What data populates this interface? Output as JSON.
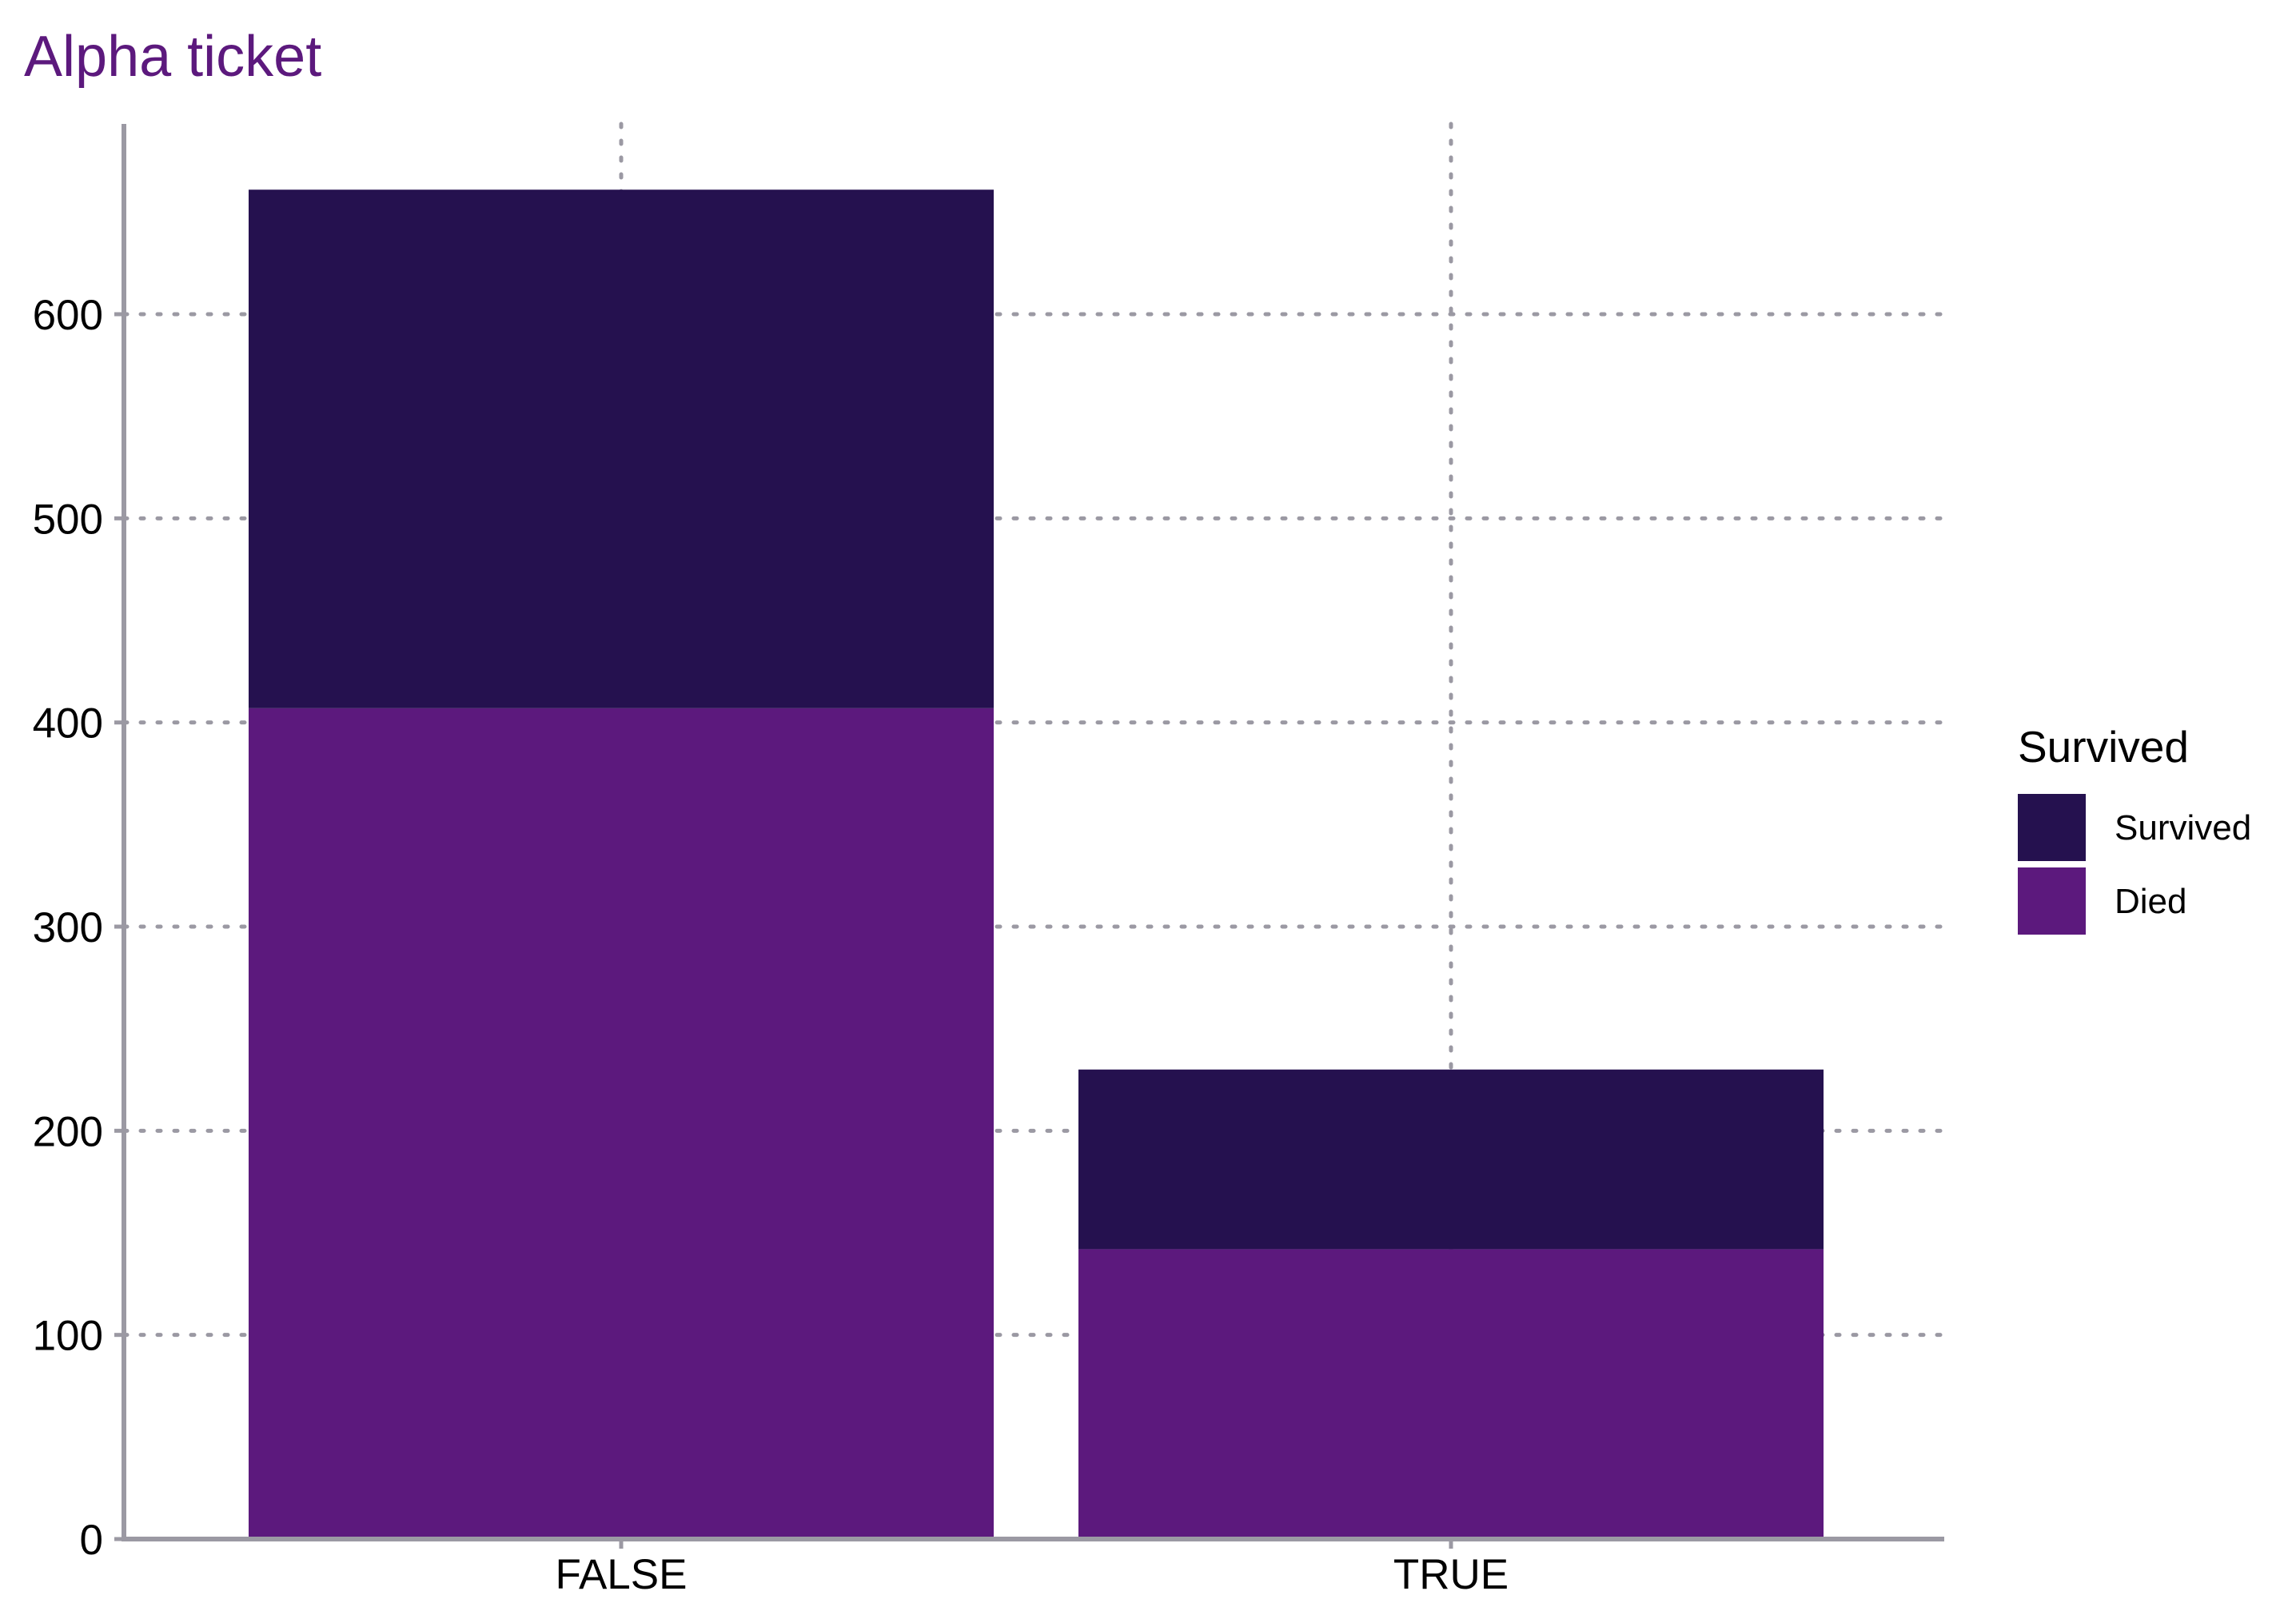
{
  "chart_data": {
    "type": "bar",
    "stacked": true,
    "title": "Alpha ticket",
    "xlabel": "",
    "ylabel": "",
    "categories": [
      "FALSE",
      "TRUE"
    ],
    "series": [
      {
        "name": "Died",
        "values": [
          407,
          142
        ],
        "color": "#5c197d"
      },
      {
        "name": "Survived",
        "values": [
          254,
          88
        ],
        "color": "#25114f"
      }
    ],
    "ylim": [
      0,
      690
    ],
    "y_ticks": [
      0,
      100,
      200,
      300,
      400,
      500,
      600
    ],
    "grid": true,
    "grid_style": "dotted",
    "legend": {
      "title": "Survived",
      "placement": "right",
      "order": [
        "Survived",
        "Died"
      ]
    },
    "colors": {
      "title": "#5c197d",
      "axis": "#9b99a3",
      "grid": "#9b99a3"
    }
  }
}
